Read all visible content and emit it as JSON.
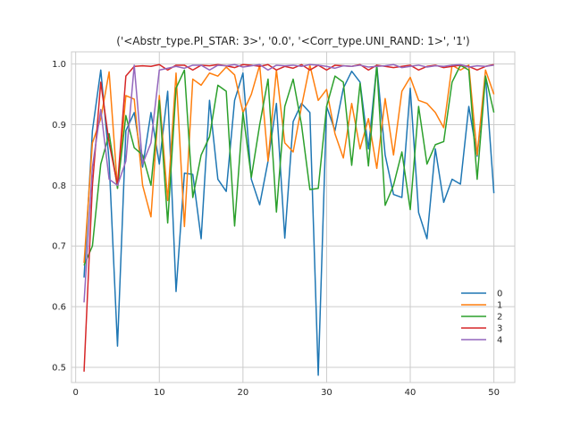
{
  "chart_data": {
    "type": "line",
    "title": "('<Abstr_type.PI_STAR: 3>', '0.0', '<Corr_type.UNI_RAND: 1>', '1')",
    "xlabel": "",
    "ylabel": "",
    "xlim": [
      -0.5,
      52.5
    ],
    "ylim": [
      0.475,
      1.02
    ],
    "xticks": [
      0,
      10,
      20,
      30,
      40,
      50
    ],
    "yticks": [
      0.5,
      0.6,
      0.7,
      0.8,
      0.9,
      1.0
    ],
    "ytick_labels": [
      "0.5",
      "0.6",
      "0.7",
      "0.8",
      "0.9",
      "1.0"
    ],
    "grid": true,
    "legend_position": "lower-right",
    "x": [
      1,
      2,
      3,
      4,
      5,
      6,
      7,
      8,
      9,
      10,
      11,
      12,
      13,
      14,
      15,
      16,
      17,
      18,
      19,
      20,
      21,
      22,
      23,
      24,
      25,
      26,
      27,
      28,
      29,
      30,
      31,
      32,
      33,
      34,
      35,
      36,
      37,
      38,
      39,
      40,
      41,
      42,
      43,
      44,
      45,
      46,
      47,
      48,
      49,
      50
    ],
    "series": [
      {
        "name": "0",
        "color": "#1f77b4",
        "values": [
          0.648,
          0.89,
          0.99,
          0.84,
          0.535,
          0.89,
          0.92,
          0.83,
          0.92,
          0.835,
          0.955,
          0.625,
          0.82,
          0.818,
          0.712,
          0.94,
          0.81,
          0.79,
          0.94,
          0.985,
          0.81,
          0.768,
          0.84,
          0.935,
          0.713,
          0.905,
          0.935,
          0.92,
          0.487,
          0.93,
          0.89,
          0.96,
          0.988,
          0.97,
          0.86,
          0.998,
          0.85,
          0.785,
          0.78,
          0.96,
          0.755,
          0.712,
          0.86,
          0.772,
          0.81,
          0.802,
          0.93,
          0.848,
          0.98,
          0.787
        ]
      },
      {
        "name": "1",
        "color": "#ff7f0e",
        "values": [
          0.672,
          0.87,
          0.91,
          0.987,
          0.795,
          0.948,
          0.942,
          0.8,
          0.748,
          0.948,
          0.775,
          0.985,
          0.732,
          0.975,
          0.965,
          0.985,
          0.98,
          0.995,
          0.982,
          0.92,
          0.95,
          0.998,
          0.84,
          0.99,
          0.87,
          0.855,
          0.93,
          0.998,
          0.94,
          0.958,
          0.885,
          0.845,
          0.935,
          0.86,
          0.91,
          0.828,
          0.943,
          0.85,
          0.955,
          0.978,
          0.94,
          0.935,
          0.92,
          0.895,
          0.998,
          0.99,
          0.998,
          0.85,
          0.99,
          0.95
        ]
      },
      {
        "name": "2",
        "color": "#2ca02c",
        "values": [
          0.668,
          0.7,
          0.835,
          0.885,
          0.795,
          0.915,
          0.862,
          0.85,
          0.8,
          0.94,
          0.738,
          0.96,
          0.99,
          0.78,
          0.85,
          0.88,
          0.965,
          0.955,
          0.733,
          0.92,
          0.813,
          0.9,
          0.975,
          0.756,
          0.93,
          0.975,
          0.9,
          0.793,
          0.795,
          0.93,
          0.98,
          0.97,
          0.833,
          0.968,
          0.832,
          0.998,
          0.767,
          0.8,
          0.855,
          0.76,
          0.93,
          0.835,
          0.867,
          0.872,
          0.97,
          0.998,
          0.99,
          0.81,
          0.98,
          0.92
        ]
      },
      {
        "name": "3",
        "color": "#d62728",
        "values": [
          0.493,
          0.8,
          0.97,
          0.87,
          0.8,
          0.98,
          0.996,
          0.997,
          0.996,
          0.999,
          0.99,
          0.998,
          0.998,
          0.99,
          0.998,
          0.997,
          0.999,
          0.997,
          0.994,
          0.999,
          0.998,
          0.996,
          0.999,
          0.99,
          0.996,
          0.993,
          0.999,
          0.99,
          0.998,
          0.99,
          0.998,
          0.997,
          0.996,
          0.999,
          0.99,
          0.998,
          0.996,
          0.994,
          0.996,
          0.998,
          0.99,
          0.996,
          0.998,
          0.994,
          0.996,
          0.998,
          0.996,
          0.99,
          0.996,
          0.999
        ]
      },
      {
        "name": "4",
        "color": "#9467bd",
        "values": [
          0.607,
          0.83,
          0.925,
          0.81,
          0.8,
          0.84,
          0.998,
          0.835,
          0.87,
          0.99,
          0.993,
          0.996,
          0.993,
          0.998,
          0.998,
          0.99,
          0.998,
          0.997,
          0.999,
          0.995,
          0.997,
          0.999,
          0.99,
          0.998,
          0.997,
          0.998,
          0.996,
          0.999,
          0.998,
          0.996,
          0.993,
          0.997,
          0.996,
          0.998,
          0.995,
          0.996,
          0.997,
          0.999,
          0.994,
          0.996,
          0.998,
          0.995,
          0.997,
          0.996,
          0.998,
          0.999,
          0.995,
          0.997,
          0.996,
          0.998
        ]
      }
    ]
  }
}
